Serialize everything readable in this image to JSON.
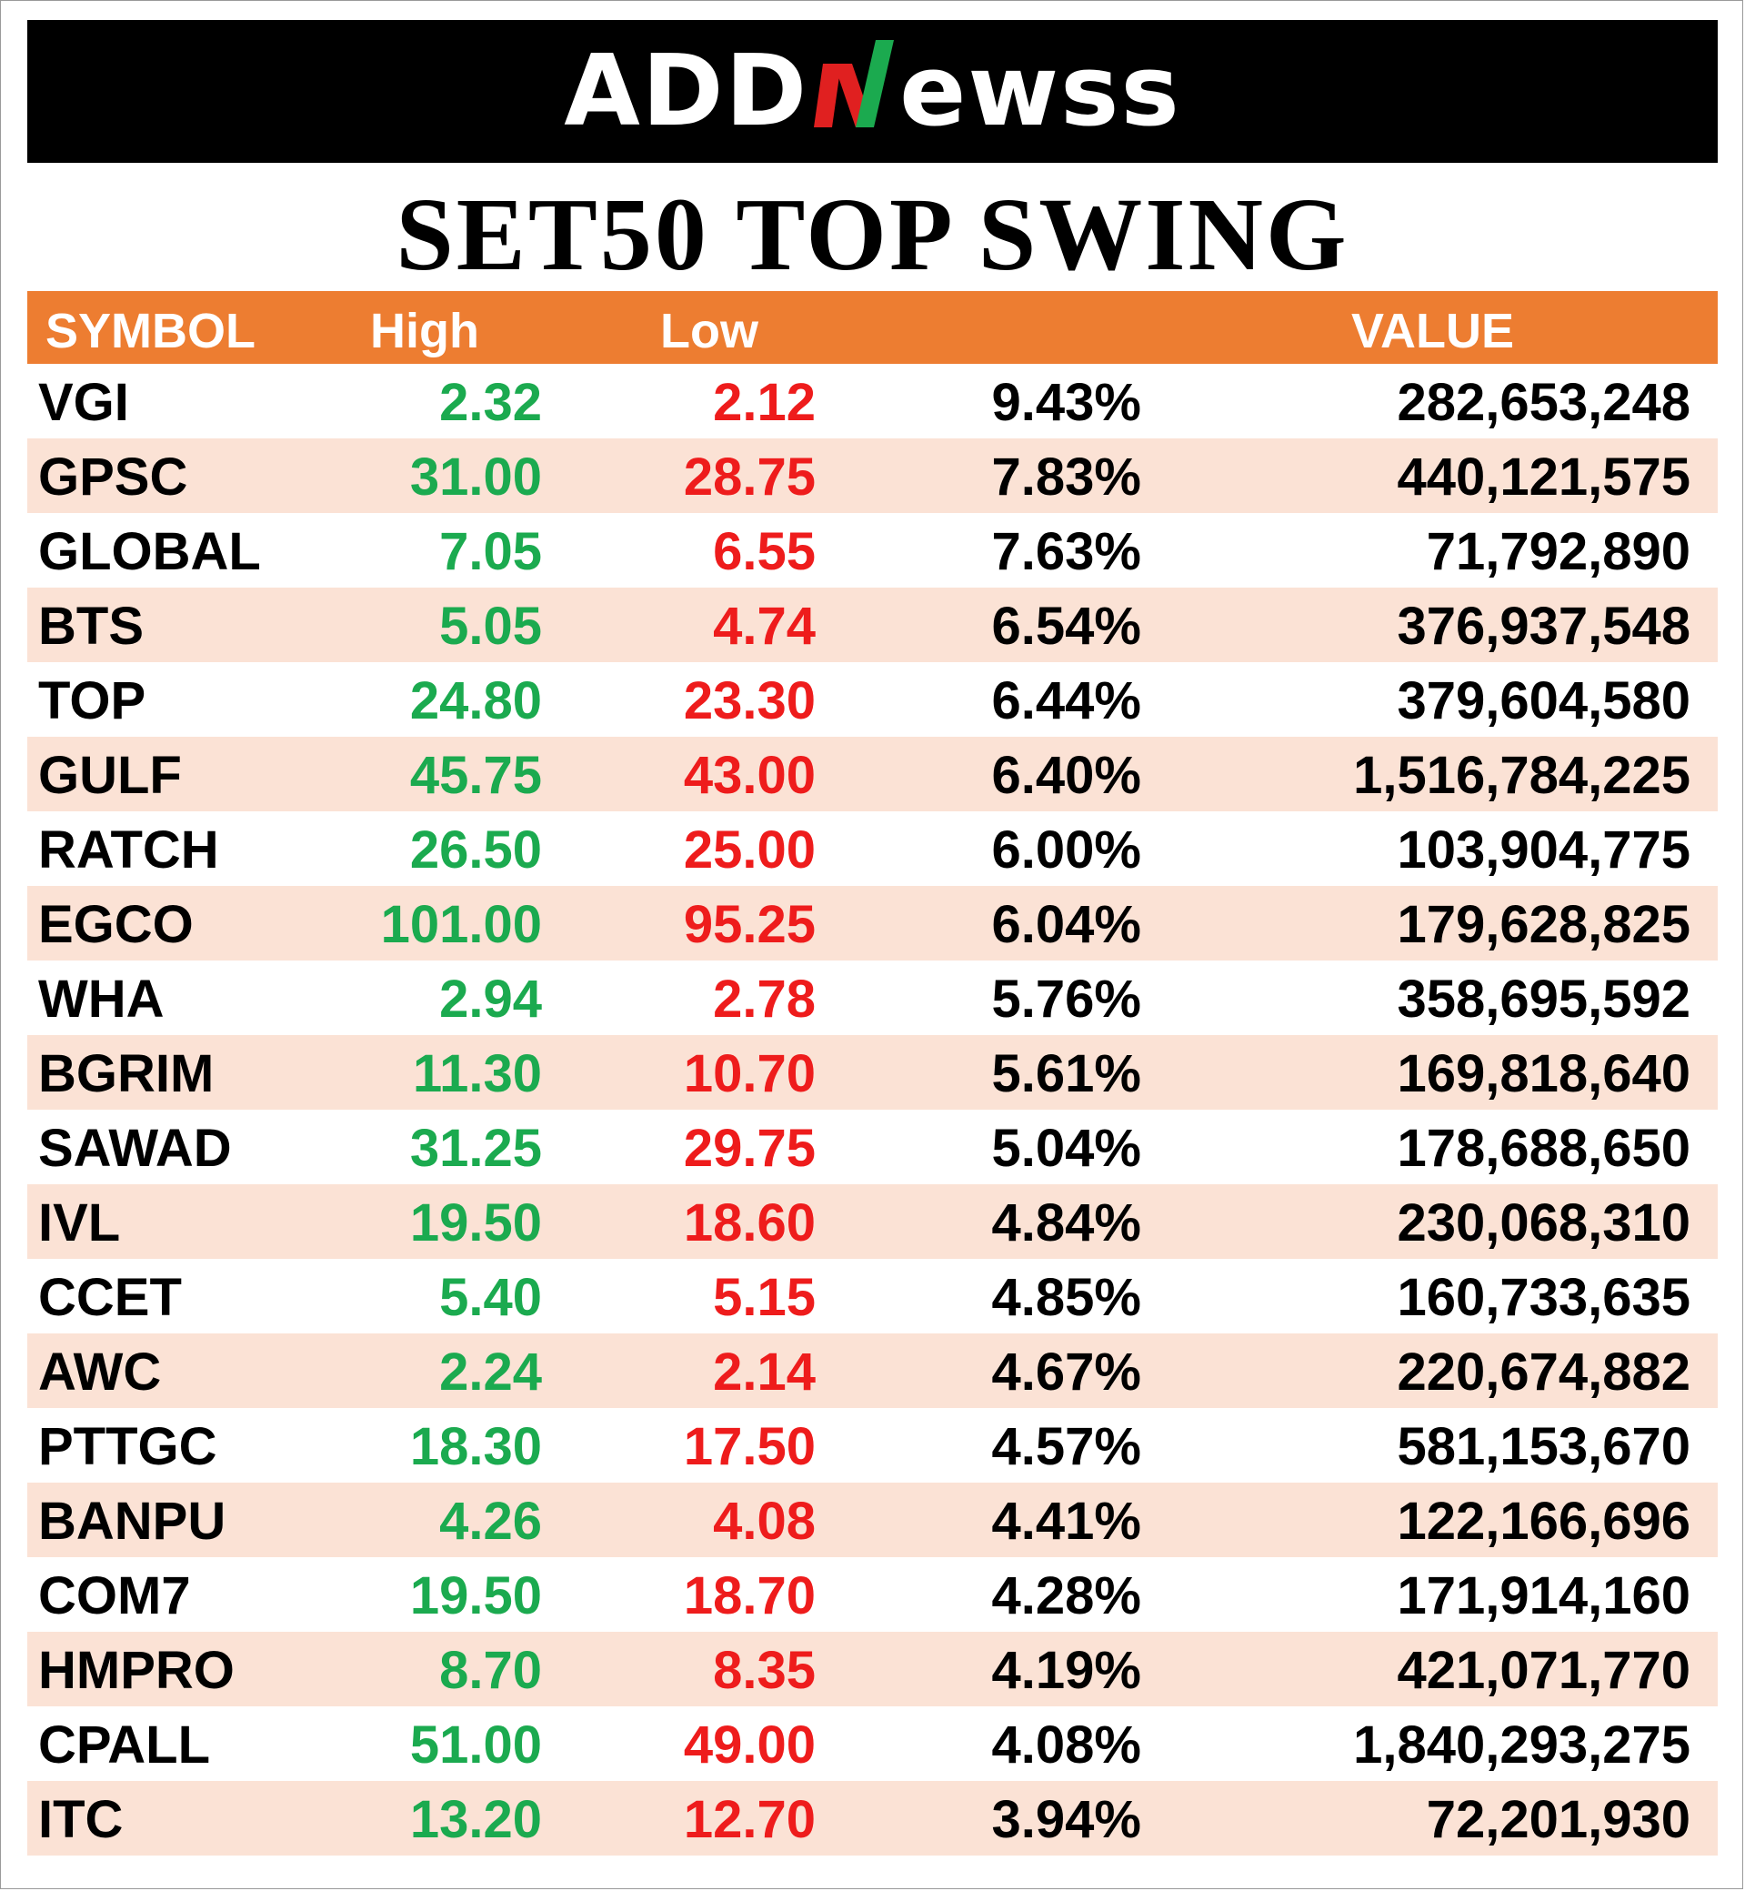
{
  "brand": {
    "logo_text_left": "ADD",
    "logo_text_right": "ewss",
    "logo_green": "#1BAA4F",
    "logo_red": "#E02020"
  },
  "title": "SET50 TOP SWING",
  "table": {
    "header": {
      "symbol": "SYMBOL",
      "high": "High",
      "low": "Low",
      "pct": "",
      "value": "VALUE"
    },
    "rows": [
      {
        "symbol": "VGI",
        "high": "2.32",
        "low": "2.12",
        "pct": "9.43%",
        "value": "282,653,248"
      },
      {
        "symbol": "GPSC",
        "high": "31.00",
        "low": "28.75",
        "pct": "7.83%",
        "value": "440,121,575"
      },
      {
        "symbol": "GLOBAL",
        "high": "7.05",
        "low": "6.55",
        "pct": "7.63%",
        "value": "71,792,890"
      },
      {
        "symbol": "BTS",
        "high": "5.05",
        "low": "4.74",
        "pct": "6.54%",
        "value": "376,937,548"
      },
      {
        "symbol": "TOP",
        "high": "24.80",
        "low": "23.30",
        "pct": "6.44%",
        "value": "379,604,580"
      },
      {
        "symbol": "GULF",
        "high": "45.75",
        "low": "43.00",
        "pct": "6.40%",
        "value": "1,516,784,225"
      },
      {
        "symbol": "RATCH",
        "high": "26.50",
        "low": "25.00",
        "pct": "6.00%",
        "value": "103,904,775"
      },
      {
        "symbol": "EGCO",
        "high": "101.00",
        "low": "95.25",
        "pct": "6.04%",
        "value": "179,628,825"
      },
      {
        "symbol": "WHA",
        "high": "2.94",
        "low": "2.78",
        "pct": "5.76%",
        "value": "358,695,592"
      },
      {
        "symbol": "BGRIM",
        "high": "11.30",
        "low": "10.70",
        "pct": "5.61%",
        "value": "169,818,640"
      },
      {
        "symbol": "SAWAD",
        "high": "31.25",
        "low": "29.75",
        "pct": "5.04%",
        "value": "178,688,650"
      },
      {
        "symbol": "IVL",
        "high": "19.50",
        "low": "18.60",
        "pct": "4.84%",
        "value": "230,068,310"
      },
      {
        "symbol": "CCET",
        "high": "5.40",
        "low": "5.15",
        "pct": "4.85%",
        "value": "160,733,635"
      },
      {
        "symbol": "AWC",
        "high": "2.24",
        "low": "2.14",
        "pct": "4.67%",
        "value": "220,674,882"
      },
      {
        "symbol": "PTTGC",
        "high": "18.30",
        "low": "17.50",
        "pct": "4.57%",
        "value": "581,153,670"
      },
      {
        "symbol": "BANPU",
        "high": "4.26",
        "low": "4.08",
        "pct": "4.41%",
        "value": "122,166,696"
      },
      {
        "symbol": "COM7",
        "high": "19.50",
        "low": "18.70",
        "pct": "4.28%",
        "value": "171,914,160"
      },
      {
        "symbol": "HMPRO",
        "high": "8.70",
        "low": "8.35",
        "pct": "4.19%",
        "value": "421,071,770"
      },
      {
        "symbol": "CPALL",
        "high": "51.00",
        "low": "49.00",
        "pct": "4.08%",
        "value": "1,840,293,275"
      },
      {
        "symbol": "ITC",
        "high": "13.20",
        "low": "12.70",
        "pct": "3.94%",
        "value": "72,201,930"
      }
    ]
  }
}
